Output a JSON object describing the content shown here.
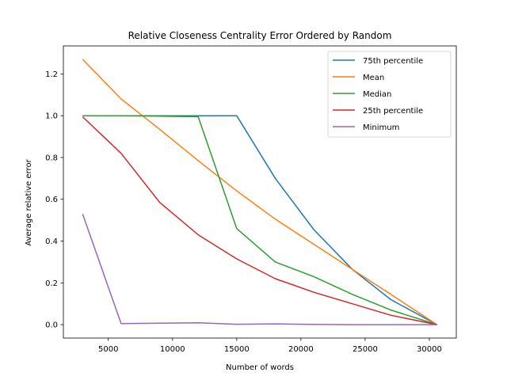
{
  "chart_data": {
    "type": "line",
    "title": "Relative Closeness Centrality Error Ordered by Random",
    "xlabel": "Number of words",
    "ylabel": "Average relative error",
    "xlim": [
      1500,
      32100
    ],
    "ylim": [
      -0.064,
      1.334
    ],
    "xticks": [
      5000,
      10000,
      15000,
      20000,
      25000,
      30000
    ],
    "xtick_labels": [
      "5000",
      "10000",
      "15000",
      "20000",
      "25000",
      "30000"
    ],
    "yticks": [
      0.0,
      0.2,
      0.4,
      0.6,
      0.8,
      1.0,
      1.2
    ],
    "ytick_labels": [
      "0.0",
      "0.2",
      "0.4",
      "0.6",
      "0.8",
      "1.0",
      "1.2"
    ],
    "grid": false,
    "legend_position": "top-right",
    "series": [
      {
        "name": "75th percentile",
        "color": "#1f77b4",
        "x": [
          3000,
          6000,
          9000,
          12000,
          15000,
          18000,
          21000,
          24000,
          27000,
          30600
        ],
        "y": [
          1.0,
          1.0,
          1.0,
          1.0,
          1.0,
          0.7,
          0.455,
          0.265,
          0.12,
          0.0
        ]
      },
      {
        "name": "Mean",
        "color": "#ff7f0e",
        "x": [
          3000,
          6000,
          9000,
          12000,
          15000,
          18000,
          21000,
          24000,
          27000,
          30600
        ],
        "y": [
          1.27,
          1.08,
          0.935,
          0.785,
          0.64,
          0.505,
          0.385,
          0.265,
          0.145,
          0.0
        ]
      },
      {
        "name": "Median",
        "color": "#2ca02c",
        "x": [
          3000,
          6000,
          9000,
          12000,
          15000,
          18000,
          21000,
          24000,
          27000,
          30600
        ],
        "y": [
          1.0,
          1.0,
          0.998,
          0.995,
          0.46,
          0.3,
          0.23,
          0.145,
          0.07,
          0.0
        ]
      },
      {
        "name": "25th percentile",
        "color": "#d62728",
        "x": [
          3000,
          6000,
          9000,
          12000,
          15000,
          18000,
          21000,
          24000,
          27000,
          30600
        ],
        "y": [
          0.995,
          0.82,
          0.585,
          0.43,
          0.315,
          0.22,
          0.155,
          0.1,
          0.045,
          0.0
        ]
      },
      {
        "name": "Minimum",
        "color": "#9467bd",
        "x": [
          3000,
          6000,
          9000,
          12000,
          15000,
          18000,
          21000,
          24000,
          27000,
          30600
        ],
        "y": [
          0.53,
          0.005,
          0.007,
          0.009,
          0.002,
          0.004,
          0.001,
          0.0,
          0.0,
          0.0
        ]
      }
    ]
  }
}
